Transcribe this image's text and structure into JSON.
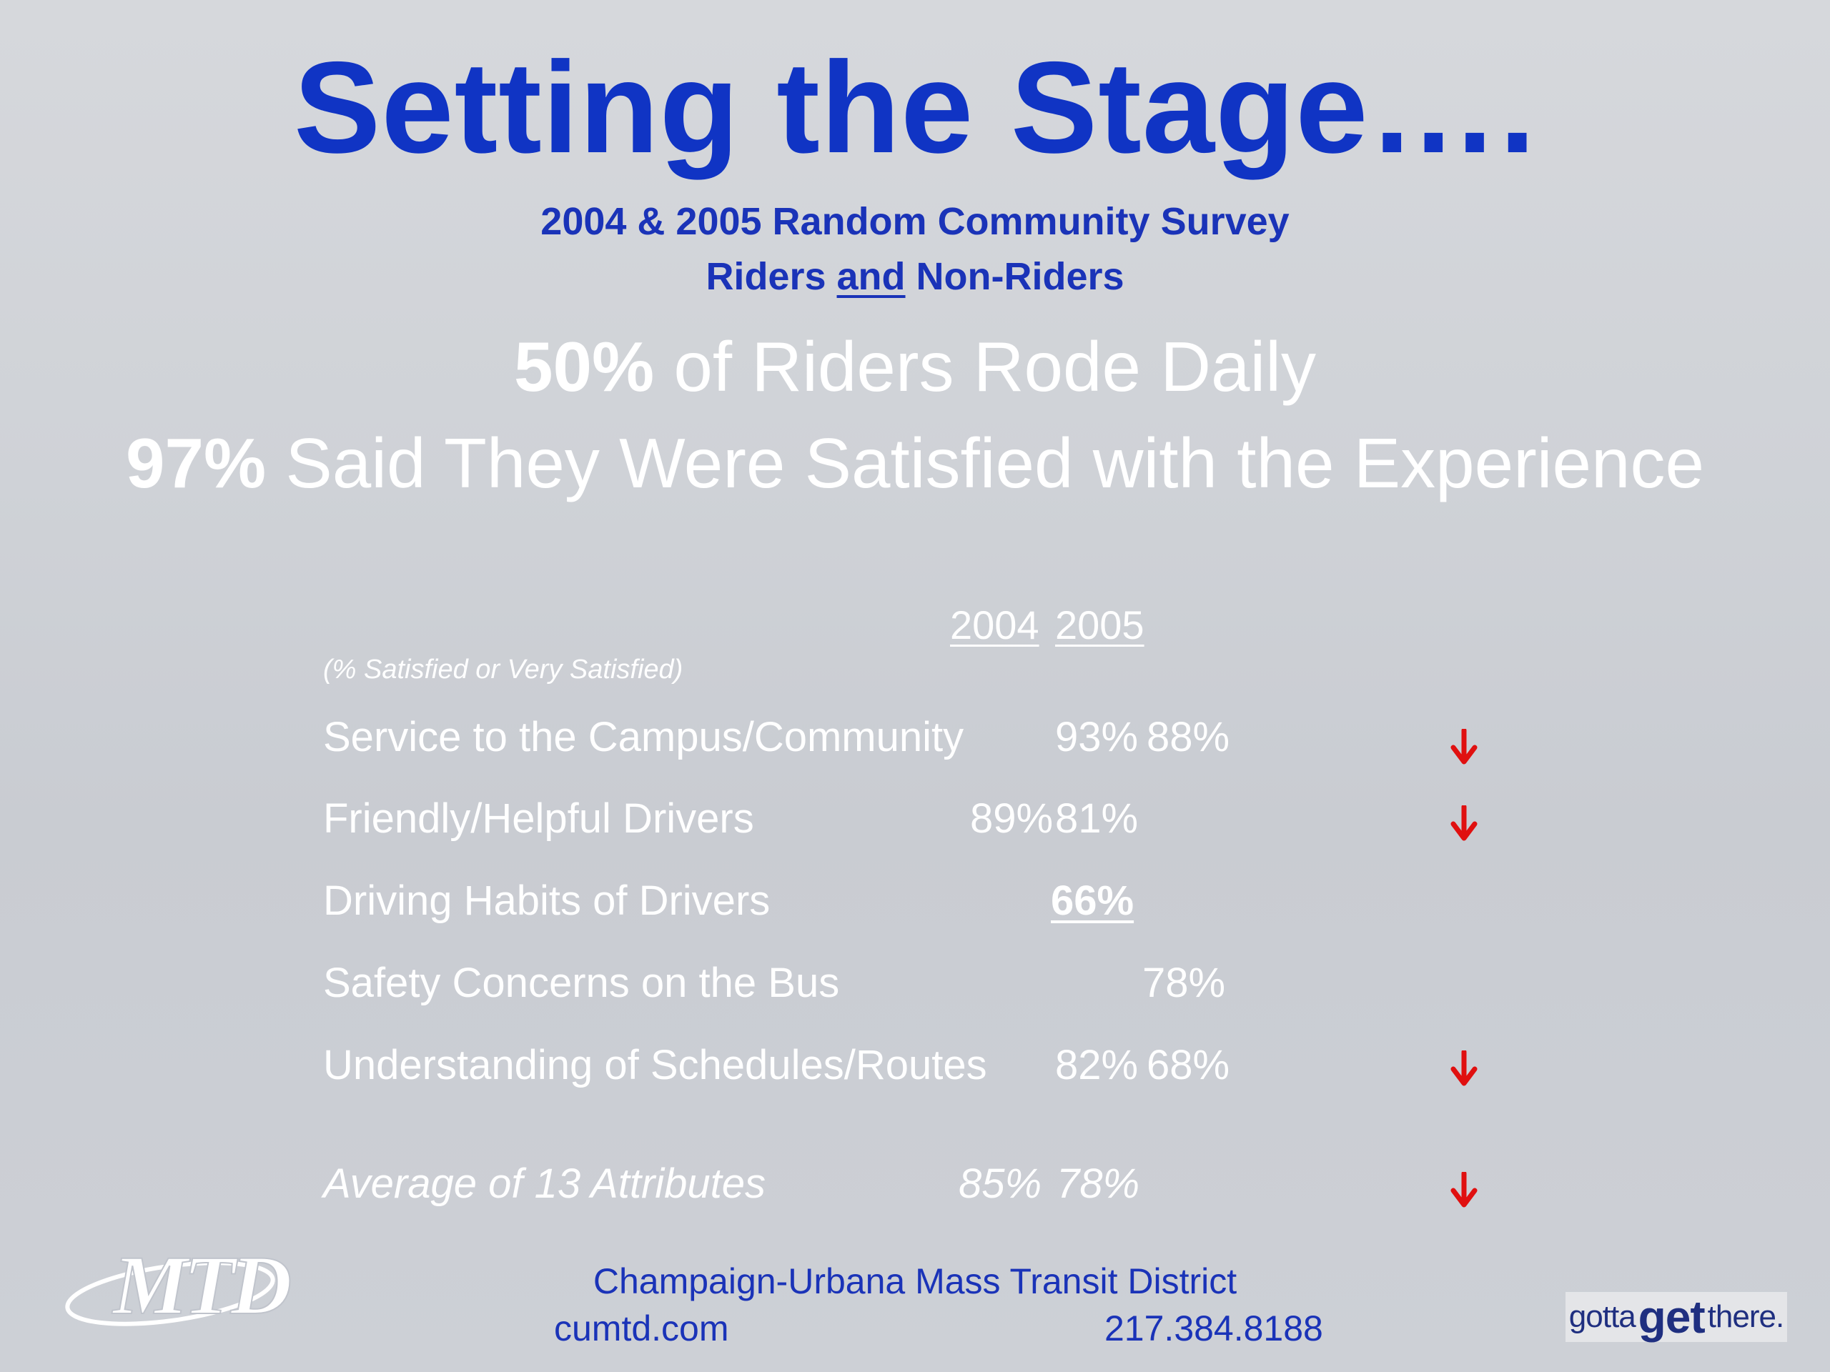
{
  "slide": {
    "title": "Setting the Stage….",
    "subtitle_line1": "2004 & 2005 Random Community Survey",
    "subtitle_line2_pre": "Riders ",
    "subtitle_line2_u": "and",
    "subtitle_line2_post": " Non-Riders",
    "stat1_bold": "50%",
    "stat1_text": " of Riders Rode Daily",
    "stat2_bold": "97%",
    "stat2_text": " Said They Were Satisfied with the Experience"
  },
  "table": {
    "year1": "2004",
    "year2": "2005",
    "note": "(% Satisfied or Very Satisfied)",
    "rows": [
      {
        "label": "Service to the Campus/Community",
        "v2004": "93%",
        "v2005": "88%",
        "trend": "down"
      },
      {
        "label": "Friendly/Helpful Drivers",
        "v2004": "89%",
        "v2005": "81%",
        "trend": "down"
      },
      {
        "label": "Driving Habits of Drivers",
        "v2004": "",
        "v2005": "66%",
        "trend": ""
      },
      {
        "label": "Safety Concerns on the Bus",
        "v2004": "",
        "v2005": "78%",
        "trend": ""
      },
      {
        "label": "Understanding of Schedules/Routes",
        "v2004": "82%",
        "v2005": "68%",
        "trend": "down"
      },
      {
        "label": "Average of 13 Attributes",
        "v2004": "85%",
        "v2005": "78%",
        "trend": "down"
      }
    ]
  },
  "footer": {
    "logo_text": "MTD",
    "organization": "Champaign-Urbana Mass Transit District",
    "website": "cumtd.com",
    "phone": "217.384.8188",
    "tagline_pre": "gotta",
    "tagline_big": "get",
    "tagline_post": "there."
  },
  "colors": {
    "title": "#1034c4",
    "arrow": "#e01010"
  }
}
